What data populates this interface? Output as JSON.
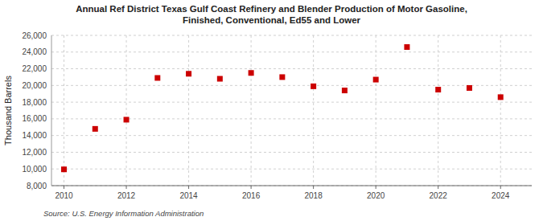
{
  "chart_data": {
    "type": "scatter",
    "title": "Annual Ref District Texas Gulf Coast Refinery and Blender Production of Motor Gasoline,\nFinished, Conventional, Ed55 and Lower",
    "y_label": "Thousand Barrels",
    "annotations": [
      "Source: U.S. Energy Information Administration"
    ],
    "x": [
      2010,
      2011,
      2012,
      2013,
      2014,
      2015,
      2016,
      2017,
      2018,
      2019,
      2020,
      2021,
      2022,
      2023,
      2024
    ],
    "values": [
      9950,
      14800,
      15900,
      20900,
      21400,
      20800,
      21500,
      21000,
      19900,
      19400,
      20700,
      24600,
      19500,
      19700,
      18600
    ],
    "color": "#cc0000",
    "marker": "square",
    "xlim": [
      2009.6,
      2025.0
    ],
    "xticks": [
      2010,
      2012,
      2014,
      2016,
      2018,
      2020,
      2022,
      2024
    ],
    "ylim": [
      8000,
      26000
    ],
    "yticks": [
      {
        "value": 8000,
        "label": "8,000"
      },
      {
        "value": 10000,
        "label": "10,000"
      },
      {
        "value": 12000,
        "label": "12,000"
      },
      {
        "value": 14000,
        "label": "14,000"
      },
      {
        "value": 16000,
        "label": "16,000"
      },
      {
        "value": 18000,
        "label": "18,000"
      },
      {
        "value": 20000,
        "label": "20,000"
      },
      {
        "value": 22000,
        "label": "22,000"
      },
      {
        "value": 24000,
        "label": "24,000"
      },
      {
        "value": 26000,
        "label": "26,000"
      }
    ],
    "grid": true
  }
}
